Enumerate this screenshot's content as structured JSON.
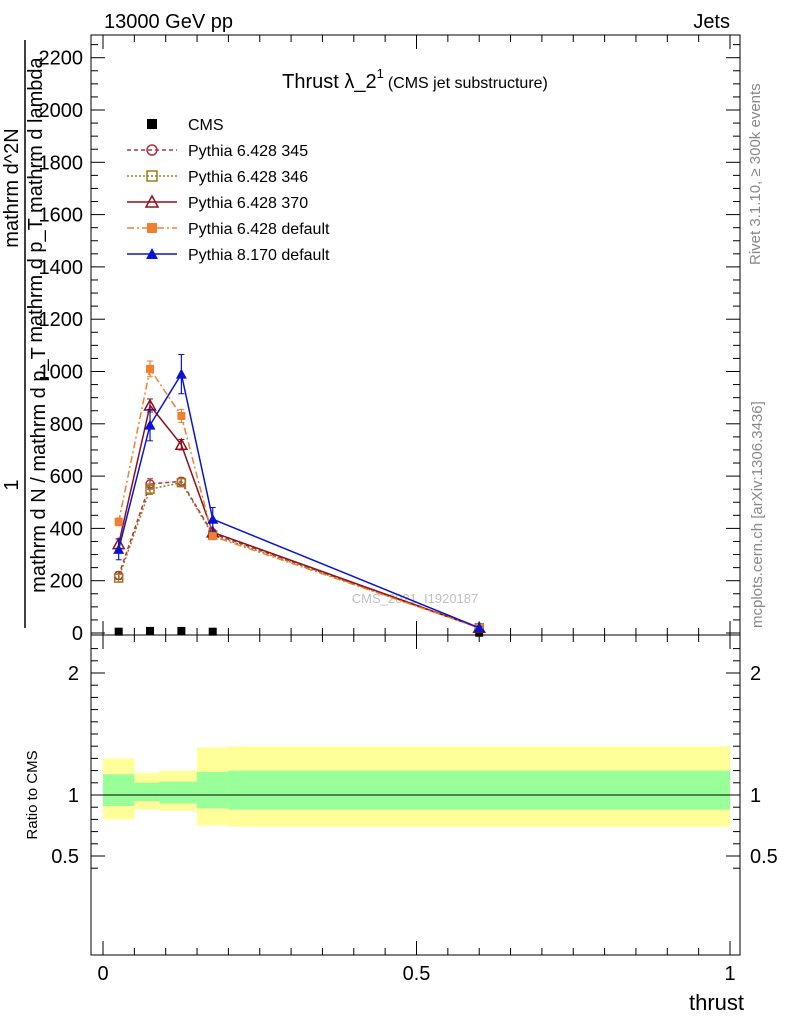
{
  "header": {
    "left": "13000 GeV pp",
    "right": "Jets"
  },
  "side_labels": {
    "rivet": "Rivet 3.1.10, ≥ 300k events",
    "mcplots": "mcplots.cern.ch [arXiv:1306.3436]"
  },
  "watermark": "CMS_2021_I1920187",
  "chart_data": [
    {
      "type": "line",
      "title": "Thrust λ_2",
      "title_superscript": "1",
      "title_note": "(CMS jet substructure)",
      "ylabel_fraction": {
        "numerator": "1",
        "denominator": "mathrm d N / mathrm d p_T"
      },
      "ylabel_right_fraction": {
        "numerator": "mathrm d^2N",
        "denominator": "mathrm d p_T mathrm d lambda"
      },
      "ylim": [
        0,
        2300
      ],
      "yticks": [
        0,
        200,
        400,
        600,
        800,
        1000,
        1200,
        1400,
        1600,
        1800,
        2000,
        2200
      ],
      "xlim": [
        0,
        1
      ],
      "legend_position": "top-left",
      "grid": false,
      "series": [
        {
          "name": "CMS",
          "color": "#000000",
          "marker": "square-filled",
          "line": "none",
          "points": [
            {
              "x": 0.025,
              "y": 5,
              "xerr": 0.025,
              "yerr": 0
            },
            {
              "x": 0.075,
              "y": 8,
              "xerr": 0.025,
              "yerr": 0
            },
            {
              "x": 0.125,
              "y": 8,
              "xerr": 0.025,
              "yerr": 0
            },
            {
              "x": 0.175,
              "y": 5,
              "xerr": 0.025,
              "yerr": 0
            },
            {
              "x": 0.6,
              "y": 1,
              "xerr": 0.4,
              "yerr": 0
            }
          ]
        },
        {
          "name": "Pythia 6.428 345",
          "color": "#b03040",
          "marker": "circle-open",
          "dash": "4,3",
          "points": [
            {
              "x": 0.025,
              "y": 220,
              "yerr": 15
            },
            {
              "x": 0.075,
              "y": 570,
              "yerr": 20
            },
            {
              "x": 0.125,
              "y": 580,
              "yerr": 15
            },
            {
              "x": 0.175,
              "y": 380,
              "yerr": 10
            },
            {
              "x": 0.6,
              "y": 20,
              "yerr": 3
            }
          ]
        },
        {
          "name": "Pythia 6.428 346",
          "color": "#a07820",
          "marker": "square-open",
          "dash": "2,2",
          "points": [
            {
              "x": 0.025,
              "y": 210,
              "yerr": 15
            },
            {
              "x": 0.075,
              "y": 550,
              "yerr": 20
            },
            {
              "x": 0.125,
              "y": 575,
              "yerr": 15
            },
            {
              "x": 0.175,
              "y": 375,
              "yerr": 10
            },
            {
              "x": 0.6,
              "y": 20,
              "yerr": 3
            }
          ]
        },
        {
          "name": "Pythia 6.428 370",
          "color": "#8b1020",
          "marker": "triangle-open",
          "dash": "",
          "points": [
            {
              "x": 0.025,
              "y": 340,
              "yerr": 20
            },
            {
              "x": 0.075,
              "y": 870,
              "yerr": 25
            },
            {
              "x": 0.125,
              "y": 720,
              "yerr": 20
            },
            {
              "x": 0.175,
              "y": 385,
              "yerr": 10
            },
            {
              "x": 0.6,
              "y": 20,
              "yerr": 3
            }
          ]
        },
        {
          "name": "Pythia 6.428 default",
          "color": "#f08030",
          "marker": "square-filled",
          "dash": "7,3,2,3",
          "points": [
            {
              "x": 0.025,
              "y": 425,
              "yerr": 15
            },
            {
              "x": 0.075,
              "y": 1010,
              "yerr": 30
            },
            {
              "x": 0.125,
              "y": 830,
              "yerr": 25
            },
            {
              "x": 0.175,
              "y": 370,
              "yerr": 10
            },
            {
              "x": 0.6,
              "y": 20,
              "yerr": 3
            }
          ]
        },
        {
          "name": "Pythia 8.170 default",
          "color": "#0a14d0",
          "marker": "triangle-filled",
          "dash": "",
          "points": [
            {
              "x": 0.025,
              "y": 320,
              "yerr": 40
            },
            {
              "x": 0.075,
              "y": 795,
              "yerr": 60
            },
            {
              "x": 0.125,
              "y": 990,
              "yerr": 75
            },
            {
              "x": 0.175,
              "y": 435,
              "yerr": 45
            },
            {
              "x": 0.6,
              "y": 20,
              "yerr": 5
            }
          ]
        }
      ]
    },
    {
      "type": "area",
      "ylabel": "Ratio to CMS",
      "xlabel": "thrust",
      "ylim": [
        0.35,
        2.3
      ],
      "yticks": [
        0.5,
        1,
        2
      ],
      "xlim": [
        0,
        1
      ],
      "xticks": [
        0,
        0.5,
        1
      ],
      "reference_line": 1,
      "bands": [
        {
          "name": "yellow",
          "color": "#ffff99",
          "bins": [
            {
              "x0": 0.0,
              "x1": 0.05,
              "lo": 0.8,
              "hi": 1.3
            },
            {
              "x0": 0.05,
              "x1": 0.09,
              "lo": 0.88,
              "hi": 1.18
            },
            {
              "x0": 0.09,
              "x1": 0.15,
              "lo": 0.87,
              "hi": 1.2
            },
            {
              "x0": 0.15,
              "x1": 0.2,
              "lo": 0.75,
              "hi": 1.39
            },
            {
              "x0": 0.2,
              "x1": 1.0,
              "lo": 0.74,
              "hi": 1.4
            }
          ]
        },
        {
          "name": "green",
          "color": "#99ff99",
          "bins": [
            {
              "x0": 0.0,
              "x1": 0.05,
              "lo": 0.91,
              "hi": 1.17
            },
            {
              "x0": 0.05,
              "x1": 0.09,
              "lo": 0.95,
              "hi": 1.1
            },
            {
              "x0": 0.09,
              "x1": 0.15,
              "lo": 0.93,
              "hi": 1.11
            },
            {
              "x0": 0.15,
              "x1": 0.2,
              "lo": 0.89,
              "hi": 1.19
            },
            {
              "x0": 0.2,
              "x1": 1.0,
              "lo": 0.88,
              "hi": 1.2
            }
          ]
        }
      ]
    }
  ]
}
